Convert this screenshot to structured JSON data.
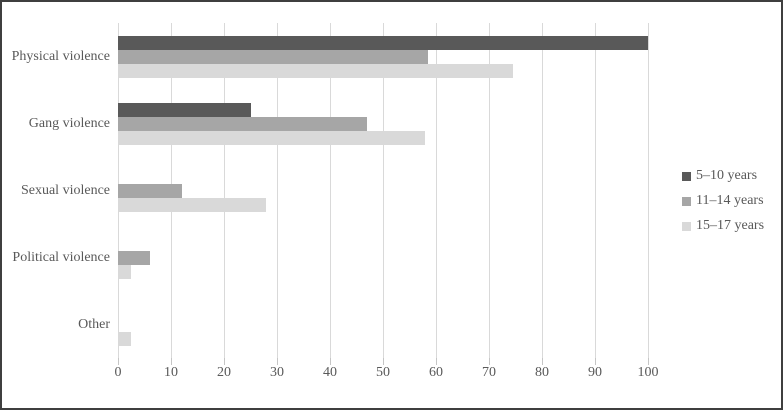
{
  "chart_data": {
    "type": "bar",
    "orientation": "horizontal",
    "title": "",
    "xlabel": "",
    "ylabel": "",
    "categories": [
      "Physical violence",
      "Gang violence",
      "Sexual violence",
      "Political violence",
      "Other"
    ],
    "series": [
      {
        "name": "5–10 years",
        "color": "#595959",
        "values": [
          100,
          25,
          0,
          0,
          0
        ]
      },
      {
        "name": "11–14 years",
        "color": "#a6a6a6",
        "values": [
          58.5,
          47,
          12,
          6,
          0
        ]
      },
      {
        "name": "15–17 years",
        "color": "#d9d9d9",
        "values": [
          74.5,
          58,
          28,
          2.5,
          2.5
        ]
      }
    ],
    "xlim": [
      0,
      100
    ],
    "x_ticks": [
      0,
      10,
      20,
      30,
      40,
      50,
      60,
      70,
      80,
      90,
      100
    ],
    "grid": true,
    "legend_position": "right"
  },
  "colors": {
    "gridline": "#d9d9d9",
    "tick_mark": "#c6c6c6",
    "text": "#595959",
    "frame_border": "#3f3f3f",
    "background": "#ffffff"
  }
}
